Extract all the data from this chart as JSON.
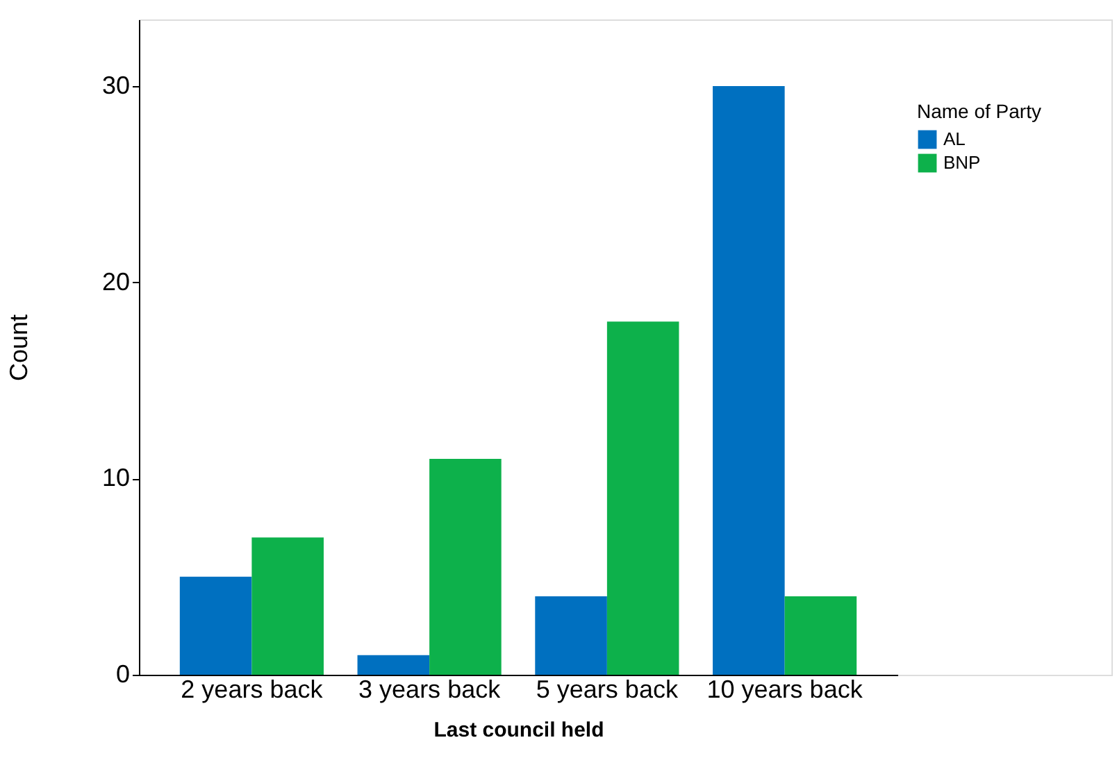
{
  "chart_data": {
    "type": "bar",
    "xlabel": "Last council held",
    "ylabel": "Count",
    "legend_title": "Name of Party",
    "categories": [
      "2 years back",
      "3 years back",
      "5 years back",
      "10 years back"
    ],
    "series": [
      {
        "name": "AL",
        "color": "#0070c0",
        "values": [
          5,
          1,
          4,
          30
        ]
      },
      {
        "name": "BNP",
        "color": "#0db14b",
        "values": [
          7,
          11,
          18,
          4
        ]
      }
    ],
    "ylim": [
      0,
      33.4
    ],
    "yticks": [
      0,
      10,
      20,
      30
    ],
    "grid": false,
    "legend": "top right"
  }
}
